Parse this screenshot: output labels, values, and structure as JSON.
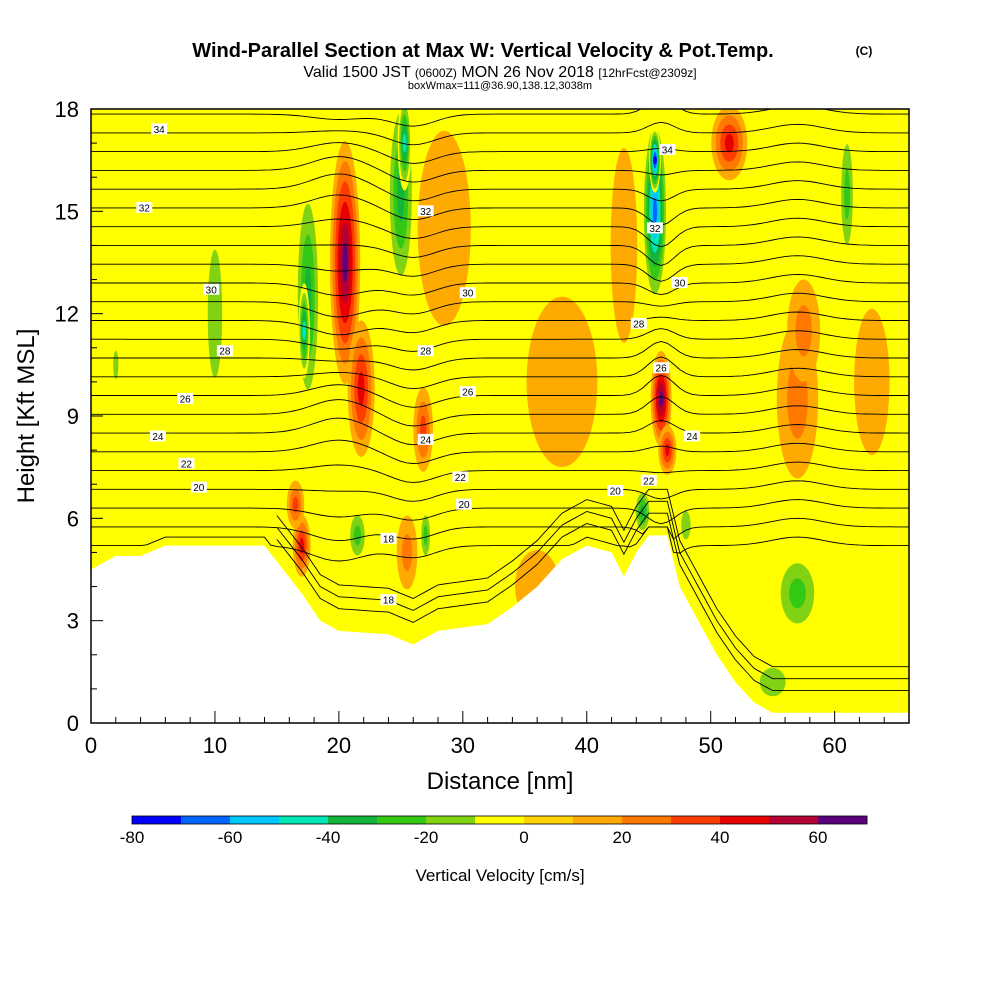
{
  "header": {
    "title": "Wind-Parallel Section at Max W: Vertical Velocity & Pot.Temp.",
    "copyright": "(C)",
    "valid_a": "Valid 1500 JST",
    "valid_zone": "(0600Z)",
    "valid_b": "MON 26 Nov 2018",
    "forecast": "[12hrFcst@2309z]",
    "box_info": "boxWmax=111@36.90,138.12,3038m"
  },
  "chart_data": {
    "type": "heatmap",
    "xlabel": "Distance [nm]",
    "ylabel": "Height [Kft MSL]",
    "xlim": [
      0,
      66
    ],
    "ylim": [
      0,
      18
    ],
    "x_ticks": [
      0,
      10,
      20,
      30,
      40,
      50,
      60
    ],
    "y_ticks": [
      0,
      3,
      6,
      9,
      12,
      15,
      18
    ],
    "colorbar": {
      "label": "Vertical Velocity [cm/s]",
      "ticks": [
        -80,
        -60,
        -40,
        -20,
        0,
        20,
        40,
        60
      ],
      "bounds": [
        -80,
        70
      ],
      "step": 10,
      "colors": [
        "#0000ff",
        "#0064ff",
        "#00c8ff",
        "#00e6b4",
        "#14b43c",
        "#32c814",
        "#82d214",
        "#ffff00",
        "#ffd200",
        "#ffaa00",
        "#ff7800",
        "#ff3c00",
        "#e60000",
        "#b40032",
        "#5a007d"
      ]
    },
    "terrain_kft": [
      [
        0,
        4.5
      ],
      [
        2,
        4.9
      ],
      [
        4,
        4.9
      ],
      [
        6,
        5.2
      ],
      [
        10,
        5.2
      ],
      [
        14,
        5.2
      ],
      [
        15.5,
        4.5
      ],
      [
        17,
        3.8
      ],
      [
        18.5,
        3.0
      ],
      [
        20,
        2.7
      ],
      [
        24,
        2.6
      ],
      [
        26,
        2.3
      ],
      [
        28,
        2.7
      ],
      [
        32,
        2.9
      ],
      [
        34,
        3.4
      ],
      [
        36,
        4.0
      ],
      [
        38,
        4.8
      ],
      [
        40,
        5.2
      ],
      [
        42,
        5.0
      ],
      [
        43,
        4.3
      ],
      [
        44,
        5.0
      ],
      [
        45,
        5.5
      ],
      [
        46.5,
        5.5
      ],
      [
        47.5,
        4.0
      ],
      [
        49,
        3.0
      ],
      [
        50.5,
        2.0
      ],
      [
        52,
        1.2
      ],
      [
        53.5,
        0.6
      ],
      [
        55,
        0.3
      ],
      [
        60,
        0.3
      ],
      [
        66,
        0.3
      ]
    ],
    "velocity_cells": [
      {
        "x": 20.5,
        "y": 13.5,
        "sx": 1.3,
        "sy": 3.8,
        "v": 65
      },
      {
        "x": 21.8,
        "y": 9.8,
        "sx": 1.2,
        "sy": 2.2,
        "v": 45
      },
      {
        "x": 17.0,
        "y": 5.2,
        "sx": 0.8,
        "sy": 1.0,
        "v": 45
      },
      {
        "x": 16.5,
        "y": 6.4,
        "sx": 0.8,
        "sy": 0.8,
        "v": 30
      },
      {
        "x": 26.8,
        "y": 8.6,
        "sx": 0.9,
        "sy": 1.4,
        "v": 30
      },
      {
        "x": 25.5,
        "y": 5.0,
        "sx": 1.0,
        "sy": 1.3,
        "v": 25
      },
      {
        "x": 46.0,
        "y": 9.5,
        "sx": 0.9,
        "sy": 1.5,
        "v": 70
      },
      {
        "x": 46.5,
        "y": 8.0,
        "sx": 0.8,
        "sy": 0.8,
        "v": 45
      },
      {
        "x": 51.5,
        "y": 17.0,
        "sx": 1.6,
        "sy": 1.2,
        "v": 42
      },
      {
        "x": 57.0,
        "y": 9.5,
        "sx": 2.0,
        "sy": 2.8,
        "v": 25
      },
      {
        "x": 57.5,
        "y": 11.5,
        "sx": 1.6,
        "sy": 1.8,
        "v": 22
      },
      {
        "x": 28.5,
        "y": 14.5,
        "sx": 3.0,
        "sy": 4.0,
        "v": 18
      },
      {
        "x": 43.0,
        "y": 14.0,
        "sx": 1.5,
        "sy": 4.0,
        "v": 18
      },
      {
        "x": 38.0,
        "y": 10.0,
        "sx": 4.0,
        "sy": 3.5,
        "v": 10
      },
      {
        "x": 36.0,
        "y": 4.0,
        "sx": 2.5,
        "sy": 1.5,
        "v": 12
      },
      {
        "x": 6.0,
        "y": 6.5,
        "sx": 5.0,
        "sy": 1.2,
        "v": 8
      },
      {
        "x": 63.0,
        "y": 10.0,
        "sx": 2.0,
        "sy": 3.0,
        "v": 12
      },
      {
        "x": 17.5,
        "y": 12.5,
        "sx": 1.2,
        "sy": 4.0,
        "v": -40
      },
      {
        "x": 17.2,
        "y": 11.5,
        "sx": 0.5,
        "sy": 1.5,
        "v": -48
      },
      {
        "x": 25.0,
        "y": 15.5,
        "sx": 1.3,
        "sy": 3.5,
        "v": -40
      },
      {
        "x": 25.3,
        "y": 17.0,
        "sx": 0.6,
        "sy": 1.5,
        "v": -50
      },
      {
        "x": 45.5,
        "y": 15.0,
        "sx": 1.1,
        "sy": 3.0,
        "v": -62
      },
      {
        "x": 45.5,
        "y": 16.5,
        "sx": 0.5,
        "sy": 1.0,
        "v": -72
      },
      {
        "x": 10.0,
        "y": 12.0,
        "sx": 1.4,
        "sy": 4.5,
        "v": -18
      },
      {
        "x": 2.0,
        "y": 10.5,
        "sx": 0.5,
        "sy": 1.0,
        "v": -15
      },
      {
        "x": 57.0,
        "y": 3.8,
        "sx": 2.3,
        "sy": 1.5,
        "v": -30
      },
      {
        "x": 61.0,
        "y": 15.5,
        "sx": 0.8,
        "sy": 2.5,
        "v": -30
      },
      {
        "x": 21.5,
        "y": 5.5,
        "sx": 1.0,
        "sy": 1.0,
        "v": -25
      },
      {
        "x": 27.0,
        "y": 5.5,
        "sx": 0.6,
        "sy": 1.0,
        "v": -22
      },
      {
        "x": 44.5,
        "y": 6.2,
        "sx": 0.8,
        "sy": 0.8,
        "v": -35
      },
      {
        "x": 48.0,
        "y": 5.8,
        "sx": 0.9,
        "sy": 1.0,
        "v": -18
      },
      {
        "x": 55.0,
        "y": 1.2,
        "sx": 2.5,
        "sy": 1.0,
        "v": -15
      },
      {
        "x": 33.0,
        "y": 14.0,
        "sx": 1.5,
        "sy": 2.5,
        "v": -10
      },
      {
        "x": 48.0,
        "y": 16.0,
        "sx": 1.0,
        "sy": 2.0,
        "v": -10
      }
    ],
    "theta_labels": [
      {
        "text": "34",
        "x": 5.5,
        "y": 17.4
      },
      {
        "text": "34",
        "x": 46.5,
        "y": 16.8
      },
      {
        "text": "32",
        "x": 4.3,
        "y": 15.1
      },
      {
        "text": "32",
        "x": 27.0,
        "y": 15.0
      },
      {
        "text": "32",
        "x": 45.5,
        "y": 14.5
      },
      {
        "text": "30",
        "x": 9.7,
        "y": 12.7
      },
      {
        "text": "30",
        "x": 30.4,
        "y": 12.6
      },
      {
        "text": "30",
        "x": 47.5,
        "y": 12.9
      },
      {
        "text": "28",
        "x": 10.8,
        "y": 10.9
      },
      {
        "text": "28",
        "x": 27.0,
        "y": 10.9
      },
      {
        "text": "28",
        "x": 44.2,
        "y": 11.7
      },
      {
        "text": "26",
        "x": 7.6,
        "y": 9.5
      },
      {
        "text": "26",
        "x": 30.4,
        "y": 9.7
      },
      {
        "text": "26",
        "x": 46.0,
        "y": 10.4
      },
      {
        "text": "24",
        "x": 5.4,
        "y": 8.4
      },
      {
        "text": "24",
        "x": 27.0,
        "y": 8.3
      },
      {
        "text": "24",
        "x": 48.5,
        "y": 8.4
      },
      {
        "text": "22",
        "x": 7.7,
        "y": 7.6
      },
      {
        "text": "22",
        "x": 29.8,
        "y": 7.2
      },
      {
        "text": "22",
        "x": 45.0,
        "y": 7.1
      },
      {
        "text": "20",
        "x": 8.7,
        "y": 6.9
      },
      {
        "text": "20",
        "x": 30.1,
        "y": 6.4
      },
      {
        "text": "20",
        "x": 42.3,
        "y": 6.8
      },
      {
        "text": "18",
        "x": 24.0,
        "y": 5.4
      },
      {
        "text": "18",
        "x": 24.0,
        "y": 3.6
      }
    ]
  }
}
